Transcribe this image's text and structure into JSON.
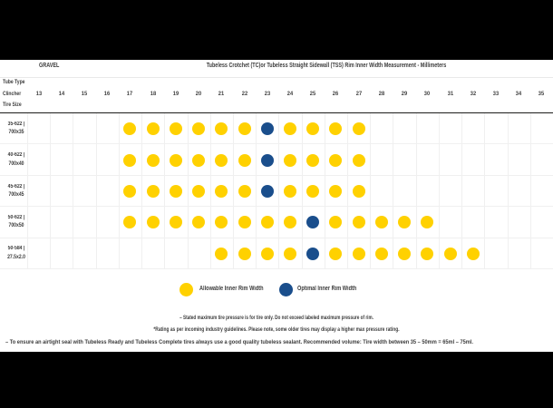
{
  "chart_data": {
    "type": "heatmap",
    "group": "GRAVEL",
    "title": "Tubeless Crotchet (TC)or Tubeless Straight Sidewall (TSS) Rim Inner Width Measurement - Millimeters",
    "row_axis_label_lines": [
      "Tube Type",
      "Clincher",
      "Tire Size"
    ],
    "columns": [
      13,
      14,
      15,
      16,
      17,
      18,
      19,
      20,
      21,
      22,
      23,
      24,
      25,
      26,
      27,
      28,
      29,
      30,
      31,
      32,
      33,
      34,
      35
    ],
    "rows": [
      {
        "tire_size_line1": "35-622 |",
        "tire_size_line2": "700x35",
        "allowable_widths": [
          17,
          18,
          19,
          20,
          21,
          22,
          24,
          25,
          26,
          27
        ],
        "optimal_widths": [
          23
        ]
      },
      {
        "tire_size_line1": "40-622 |",
        "tire_size_line2": "700x40",
        "allowable_widths": [
          17,
          18,
          19,
          20,
          21,
          22,
          24,
          25,
          26,
          27
        ],
        "optimal_widths": [
          23
        ]
      },
      {
        "tire_size_line1": "45-622 |",
        "tire_size_line2": "700x45",
        "allowable_widths": [
          17,
          18,
          19,
          20,
          21,
          22,
          24,
          25,
          26,
          27
        ],
        "optimal_widths": [
          23
        ]
      },
      {
        "tire_size_line1": "50-622 |",
        "tire_size_line2": "700x50",
        "allowable_widths": [
          17,
          18,
          19,
          20,
          21,
          22,
          23,
          24,
          26,
          27,
          28,
          29,
          30
        ],
        "optimal_widths": [
          25
        ]
      },
      {
        "tire_size_line1": "50-584 |",
        "tire_size_line2": "27.5x2.0",
        "allowable_widths": [
          21,
          22,
          23,
          24,
          26,
          27,
          28,
          29,
          30,
          31,
          32
        ],
        "optimal_widths": [
          25
        ]
      }
    ],
    "legend": [
      {
        "key": "allowable",
        "label": "Allowable Inner Rim Width",
        "color": "#FFD100"
      },
      {
        "key": "optimal",
        "label": "Optimal Inner Rim Width",
        "color": "#1A4E8C"
      }
    ],
    "colors": {
      "allowable": "#FFD100",
      "optimal": "#1A4E8C"
    }
  },
  "footnotes": [
    "– Stated maximum tire pressure is for tire only. Do not exceed labeled maximum pressure of rim.",
    "*Rating as per incoming industry guidelines. Please note, some older tires may display a higher max pressure rating.",
    "– To ensure an airtight seal with Tubeless Ready and Tubeless Complete tires always use a good quality tubeless sealant. Recommended volume: Tire width between 35 – 50mm = 65ml – 75ml."
  ]
}
